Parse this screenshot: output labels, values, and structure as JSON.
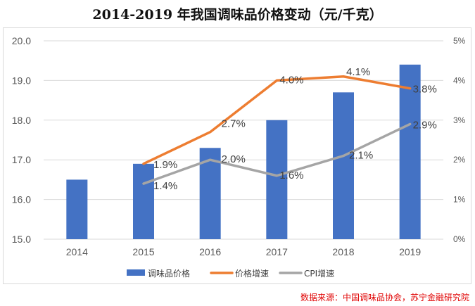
{
  "page": {
    "title": "2014-2019 年我国调味品价格变动（元/千克）",
    "source": "数据来源：中国调味品协会，苏宁金融研究院"
  },
  "chart_data": {
    "type": "bar",
    "title": "2014-2019 年我国调味品价格变动（元/千克）",
    "categories": [
      "2014",
      "2015",
      "2016",
      "2017",
      "2018",
      "2019"
    ],
    "y_left": {
      "ylim": [
        15.0,
        20.0
      ],
      "ticks": [
        "15.0",
        "16.0",
        "17.0",
        "18.0",
        "19.0",
        "20.0"
      ]
    },
    "y_right": {
      "ylim": [
        0,
        5
      ],
      "ticks": [
        "0%",
        "1%",
        "2%",
        "3%",
        "4%",
        "5%"
      ]
    },
    "series": [
      {
        "name": "调味品价格",
        "type": "bar",
        "axis": "left",
        "color": "#4472c4",
        "values": [
          16.5,
          16.9,
          17.3,
          18.0,
          18.7,
          19.4
        ]
      },
      {
        "name": "价格增速",
        "type": "line",
        "axis": "right",
        "color": "#ed7d31",
        "values": [
          null,
          1.9,
          2.7,
          4.0,
          4.1,
          3.8
        ],
        "labels": [
          null,
          "1.9%",
          "2.7%",
          "4.0%",
          "4.1%",
          "3.8%"
        ]
      },
      {
        "name": "CPI增速",
        "type": "line",
        "axis": "right",
        "color": "#a5a5a5",
        "values": [
          null,
          1.4,
          2.0,
          1.6,
          2.1,
          2.9
        ],
        "labels": [
          null,
          "1.4%",
          "2.0%",
          "1.6%",
          "2.1%",
          "2.9%"
        ]
      }
    ],
    "grid": true,
    "legend": "bottom"
  }
}
